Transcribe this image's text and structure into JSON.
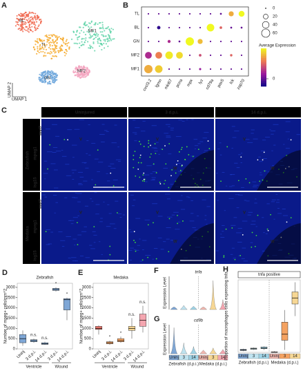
{
  "chart_data": [
    {
      "type": "umap",
      "panel": "A",
      "axis_labels": [
        "UMAP 2",
        "UMAP 1"
      ],
      "clusters": [
        {
          "name": "BL",
          "color": "#f0644a"
        },
        {
          "name": "TL",
          "color": "#f5a623"
        },
        {
          "name": "MF1",
          "color": "#5fd3a8"
        },
        {
          "name": "GN",
          "color": "#6fa8dc"
        },
        {
          "name": "MF2",
          "color": "#f4a6c0"
        }
      ]
    },
    {
      "type": "dot",
      "panel": "B",
      "rows": [
        "TL",
        "BL",
        "GN",
        "MF2",
        "MF1"
      ],
      "genes": [
        "cxcl3.2",
        "lgmn",
        "mki67",
        "pcna",
        "mpx",
        "lyz",
        "cd79a",
        "pax5",
        "lck",
        "zap70"
      ],
      "pct": [
        [
          2,
          2,
          2,
          2,
          2,
          2,
          2,
          3,
          22,
          30
        ],
        [
          2,
          10,
          2,
          2,
          2,
          2,
          50,
          6,
          3,
          3
        ],
        [
          2,
          2,
          8,
          3,
          60,
          22,
          2,
          2,
          2,
          2
        ],
        [
          40,
          40,
          50,
          40,
          2,
          6,
          2,
          2,
          5,
          2
        ],
        [
          60,
          50,
          2,
          2,
          2,
          4,
          2,
          2,
          2,
          2
        ]
      ],
      "avg": [
        [
          0,
          0,
          0,
          0,
          0,
          0,
          0,
          0,
          1.5,
          2
        ],
        [
          0,
          -0.3,
          0,
          0,
          0,
          0,
          2,
          1,
          0,
          0
        ],
        [
          0,
          0,
          0.5,
          0,
          2,
          1.6,
          0,
          0,
          0,
          0
        ],
        [
          0.5,
          1.2,
          1.9,
          1.8,
          0,
          0.8,
          0,
          0,
          1,
          0
        ],
        [
          1.5,
          1.7,
          0,
          0,
          0,
          0.3,
          0,
          0,
          0,
          0
        ]
      ],
      "size_legend": [
        0,
        20,
        40,
        60
      ],
      "size_max": 60,
      "color_title": "Average Expression",
      "clim": [
        -0.5,
        2
      ],
      "colorbar_ticks": [
        0
      ]
    },
    {
      "type": "image",
      "panel": "C",
      "columns": [
        "Uninjured",
        "3 d.p.i.",
        "14 d.p.i."
      ],
      "rows": [
        "Zebrafish",
        "Medaka"
      ],
      "stains": [
        "isg15",
        "mpeg1",
        "myl7"
      ],
      "markers": [
        "V",
        "W"
      ]
    },
    {
      "type": "box",
      "panel": "D",
      "title": "Zebrafish",
      "ylabel": "Number of mpeg+ cells/mm^2",
      "categories": [
        "Uninj",
        "3 d.p.i.",
        "14 d.p.i.",
        "3 d.p.i.",
        "14 d.p.i."
      ],
      "groups": [
        "Ventricle",
        "Wound"
      ],
      "colors": [
        "#7fa7d6",
        "#7fa7d6",
        "#7fa7d6",
        "#7fa7d6",
        "#7fa7d6"
      ],
      "boxes": [
        {
          "min": 150,
          "q1": 300,
          "median": 500,
          "q3": 700,
          "max": 900
        },
        {
          "min": 300,
          "q1": 350,
          "median": 400,
          "q3": 450,
          "max": 500
        },
        {
          "min": 200,
          "q1": 220,
          "median": 250,
          "q3": 300,
          "max": 350
        },
        {
          "min": 2800,
          "q1": 2850,
          "median": 2900,
          "q3": 2950,
          "max": 3000
        },
        {
          "min": 1400,
          "q1": 1900,
          "median": 2400,
          "q3": 2450,
          "max": 2500
        }
      ],
      "annotations": [
        null,
        "n.s.",
        "n.s.",
        "*",
        "*"
      ],
      "ylim": [
        0,
        3200
      ],
      "yticks": [
        0,
        500,
        1000,
        1500,
        2000,
        2500,
        3000
      ]
    },
    {
      "type": "box",
      "panel": "E",
      "title": "Medaka",
      "ylabel": "Number of mpeg+ cells/mm^2",
      "categories": [
        "Uninj",
        "3 d.p.i.",
        "14 d.p.i.",
        "3 d.p.i.",
        "14 d.p.i."
      ],
      "groups": [
        "Ventricle",
        "Wound"
      ],
      "colors": [
        "#e8756b",
        "#f4a261",
        "#f4a261",
        "#f7d794",
        "#f4a6b0"
      ],
      "boxes": [
        {
          "min": 700,
          "q1": 950,
          "median": 1000,
          "q3": 1100,
          "max": 1150
        },
        {
          "min": 200,
          "q1": 250,
          "median": 300,
          "q3": 350,
          "max": 400
        },
        {
          "min": 300,
          "q1": 350,
          "median": 400,
          "q3": 500,
          "max": 600
        },
        {
          "min": 500,
          "q1": 900,
          "median": 1000,
          "q3": 1100,
          "max": 1500
        },
        {
          "min": 800,
          "q1": 1100,
          "median": 1400,
          "q3": 1700,
          "max": 2100
        }
      ],
      "annotations": [
        null,
        "*",
        "*",
        "n.s.",
        "n.s."
      ],
      "ylim": [
        0,
        3200
      ],
      "yticks": [
        0,
        500,
        1000,
        1500,
        2000,
        2500,
        3000
      ]
    },
    {
      "type": "violin",
      "panel": "F",
      "title": "tnfa",
      "ylabel": "Expression Level",
      "categories": [
        "Uninj",
        "3",
        "14",
        "Uninj",
        "3",
        "14"
      ],
      "values": [
        0.3,
        0.5,
        0.4,
        0.3,
        3.5,
        1.2
      ],
      "ylim": [
        0,
        4
      ]
    },
    {
      "type": "violin",
      "panel": "G",
      "title": "cd9b",
      "ylabel": "Expression Level",
      "categories": [
        "Uninj",
        "3",
        "14",
        "Uninj",
        "3",
        "14"
      ],
      "values": [
        3.6,
        1.5,
        1.0,
        0.5,
        0.8,
        0.6
      ],
      "ylim": [
        0,
        4
      ],
      "groups": [
        "Zebrafish (d.p.i.)",
        "Medaka (d.p.i.)"
      ],
      "colors": [
        "#7fa7d6",
        "#bfe3f0",
        "#9fd3e6",
        "#f2b8b0",
        "#f7d794",
        "#f4a6b0"
      ]
    },
    {
      "type": "box",
      "panel": "H",
      "title": "tnfa positive",
      "ylabel": "Proportion of macrophages cells expressing tnfa",
      "categories": [
        "Uninj",
        "3",
        "14",
        "Uninj",
        "3",
        "14"
      ],
      "groups": [
        "Zebrafish (d.p.i.)",
        "Medaka (d.p.i.)"
      ],
      "colors": [
        "#7fa7d6",
        "#bfe3f0",
        "#9fd3e6",
        "#f2b8b0",
        "#f4a261",
        "#f7d794"
      ],
      "boxes": [
        {
          "min": 0.01,
          "q1": 0.015,
          "median": 0.02,
          "q3": 0.025,
          "max": 0.03
        },
        {
          "min": 0.02,
          "q1": 0.025,
          "median": 0.03,
          "q3": 0.035,
          "max": 0.04
        },
        {
          "min": 0.02,
          "q1": 0.03,
          "median": 0.035,
          "q3": 0.045,
          "max": 0.05
        },
        {
          "min": 0.0,
          "q1": 0.0,
          "median": 0.0,
          "q3": 0.005,
          "max": 0.01
        },
        {
          "min": 0.02,
          "q1": 0.1,
          "median": 0.15,
          "q3": 0.25,
          "max": 0.35
        },
        {
          "min": 0.3,
          "q1": 0.4,
          "median": 0.45,
          "q3": 0.5,
          "max": 0.58
        }
      ],
      "annotations": [
        null,
        null,
        null,
        null,
        null,
        null
      ],
      "ylim": [
        0,
        0.6
      ]
    }
  ]
}
